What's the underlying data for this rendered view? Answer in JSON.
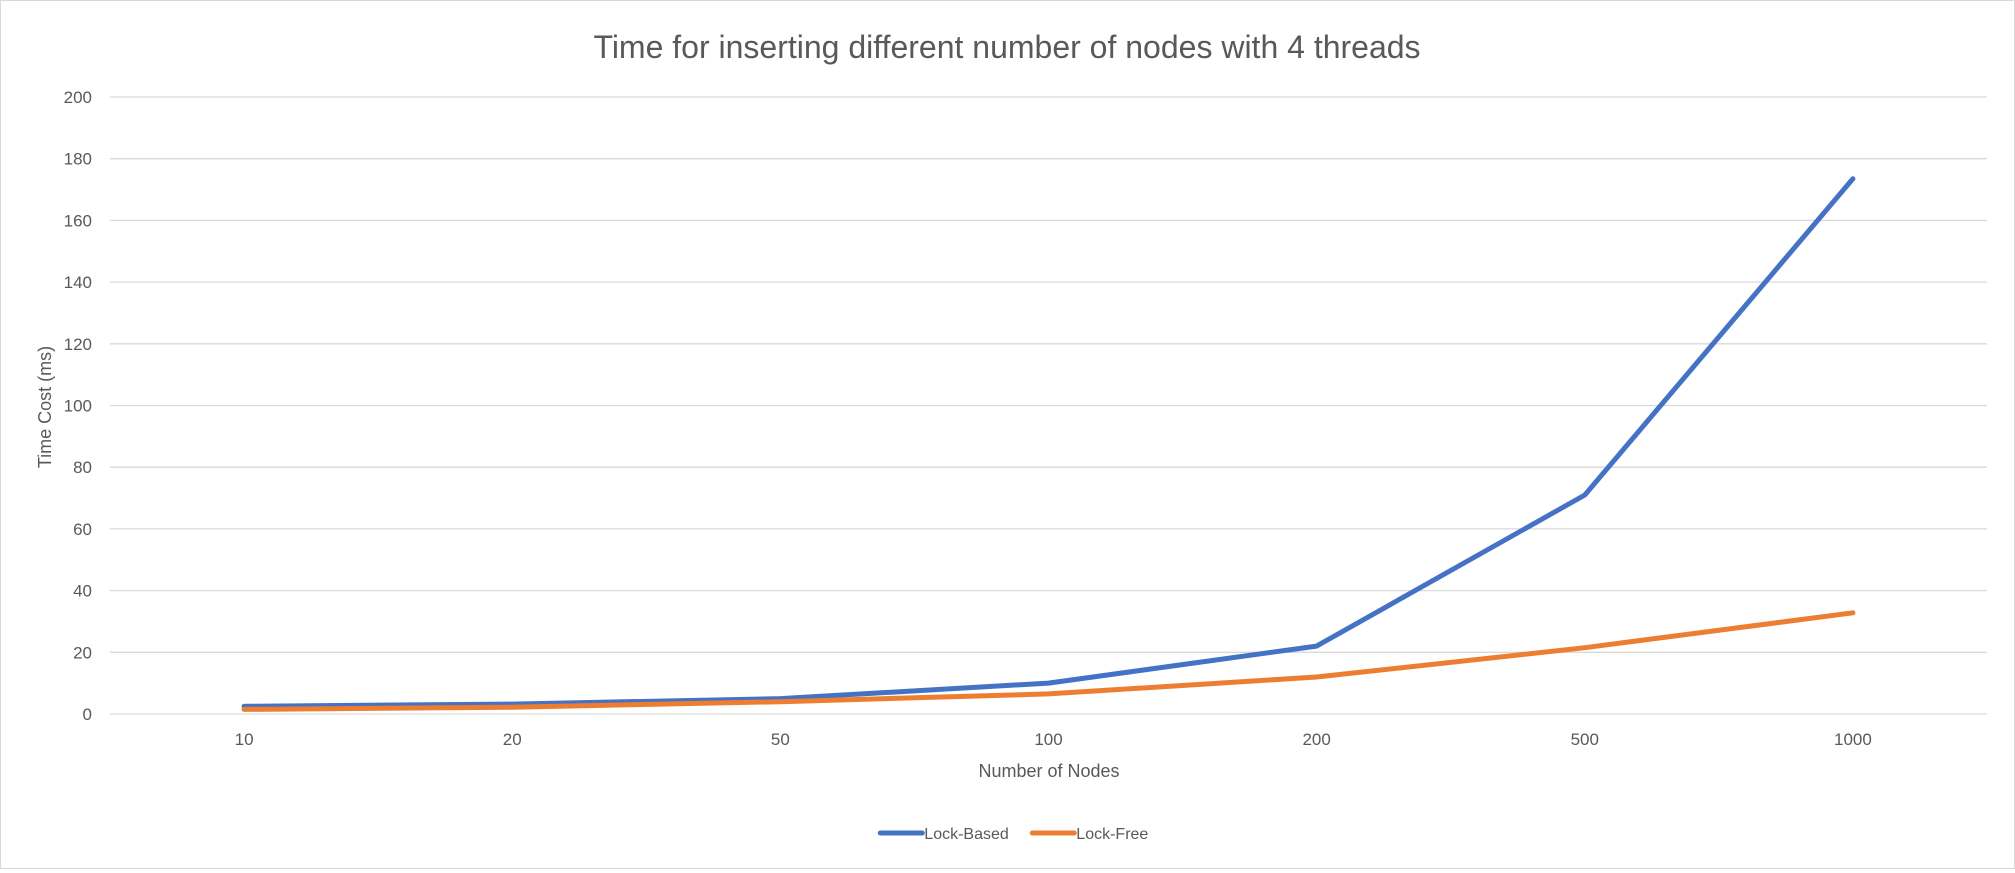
{
  "chart_data": {
    "type": "line",
    "title": "Time for inserting different number of nodes with 4 threads",
    "xlabel": "Number of Nodes",
    "ylabel": "Time Cost (ms)",
    "categories": [
      "10",
      "20",
      "50",
      "100",
      "200",
      "500",
      "1000"
    ],
    "series": [
      {
        "name": "Lock-Based",
        "color": "#4472c4",
        "values": [
          2.5,
          3.2,
          5,
          10,
          22,
          71,
          173.5
        ]
      },
      {
        "name": "Lock-Free",
        "color": "#ed7d31",
        "values": [
          1.5,
          2.2,
          4,
          6.5,
          12,
          21.5,
          32.8
        ]
      }
    ],
    "ylim": [
      0,
      200
    ],
    "yticks": [
      "0",
      "20",
      "40",
      "60",
      "80",
      "100",
      "120",
      "140",
      "160",
      "180",
      "200"
    ],
    "grid": true,
    "legend": "bottom-center"
  }
}
